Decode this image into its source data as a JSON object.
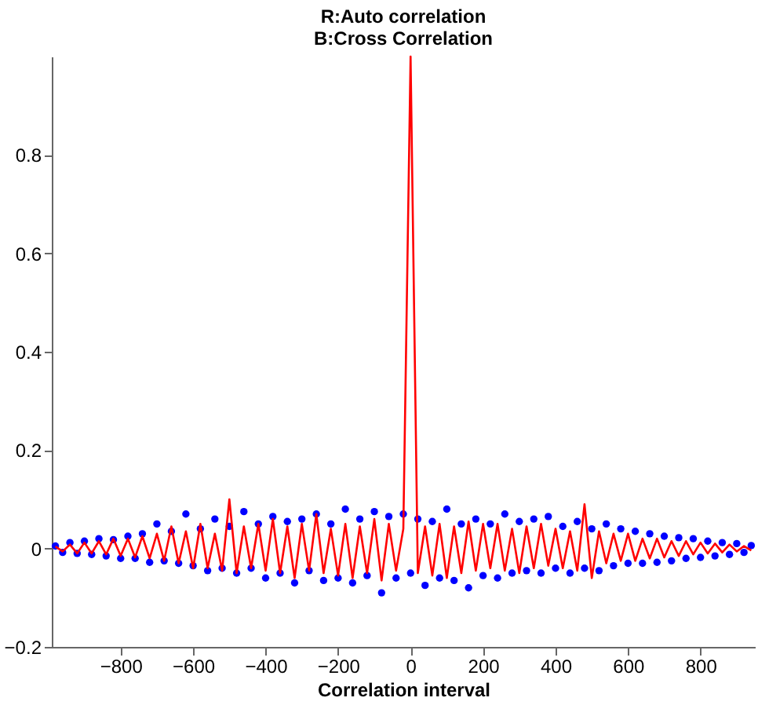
{
  "chart_data": {
    "type": "line",
    "title": [
      "R:Auto  correlation",
      "B:Cross Correlation"
    ],
    "xlabel": "Correlation interval",
    "xlim": [
      -990,
      950
    ],
    "xticks": [
      -800,
      -600,
      -400,
      -200,
      0,
      200,
      400,
      600,
      800
    ],
    "ylim": [
      -0.2,
      1.0
    ],
    "yticks": [
      -0.2,
      0,
      0.2,
      0.4,
      0.6,
      0.8
    ],
    "grid": false,
    "series": [
      {
        "type": "scatter",
        "marker": "circle",
        "color": "#0000ff",
        "x": [
          -980,
          -960,
          -940,
          -920,
          -900,
          -880,
          -860,
          -840,
          -820,
          -800,
          -780,
          -760,
          -740,
          -720,
          -700,
          -680,
          -660,
          -640,
          -620,
          -600,
          -580,
          -560,
          -540,
          -520,
          -500,
          -480,
          -460,
          -440,
          -420,
          -400,
          -380,
          -360,
          -340,
          -320,
          -300,
          -280,
          -260,
          -240,
          -220,
          -200,
          -180,
          -160,
          -140,
          -120,
          -100,
          -80,
          -60,
          -40,
          -20,
          0,
          20,
          40,
          60,
          80,
          100,
          120,
          140,
          160,
          180,
          200,
          220,
          240,
          260,
          280,
          300,
          320,
          340,
          360,
          380,
          400,
          420,
          440,
          460,
          480,
          500,
          520,
          540,
          560,
          580,
          600,
          620,
          640,
          660,
          680,
          700,
          720,
          740,
          760,
          780,
          800,
          820,
          840,
          860,
          880,
          900,
          920,
          940
        ],
        "values": [
          0.005,
          -0.008,
          0.012,
          -0.01,
          0.015,
          -0.012,
          0.02,
          -0.015,
          0.018,
          -0.02,
          0.025,
          -0.02,
          0.03,
          -0.028,
          0.05,
          -0.025,
          0.035,
          -0.03,
          0.07,
          -0.035,
          0.04,
          -0.045,
          0.06,
          -0.04,
          0.045,
          -0.05,
          0.075,
          -0.04,
          0.05,
          -0.06,
          0.065,
          -0.05,
          0.055,
          -0.07,
          0.06,
          -0.045,
          0.07,
          -0.065,
          0.05,
          -0.06,
          0.08,
          -0.07,
          0.06,
          -0.055,
          0.075,
          -0.09,
          0.065,
          -0.06,
          0.07,
          -0.05,
          0.06,
          -0.075,
          0.055,
          -0.06,
          0.08,
          -0.065,
          0.05,
          -0.08,
          0.06,
          -0.055,
          0.05,
          -0.06,
          0.07,
          -0.05,
          0.055,
          -0.045,
          0.06,
          -0.05,
          0.065,
          -0.04,
          0.045,
          -0.05,
          0.055,
          -0.04,
          0.04,
          -0.045,
          0.05,
          -0.035,
          0.04,
          -0.03,
          0.035,
          -0.03,
          0.03,
          -0.028,
          0.025,
          -0.025,
          0.022,
          -0.02,
          0.02,
          -0.018,
          0.015,
          -0.015,
          0.012,
          -0.012,
          0.01,
          -0.008,
          0.006
        ]
      },
      {
        "line_style": "solid",
        "color": "#ff0000",
        "x": [
          -980,
          -960,
          -940,
          -920,
          -900,
          -880,
          -860,
          -840,
          -820,
          -800,
          -780,
          -760,
          -740,
          -720,
          -700,
          -680,
          -660,
          -640,
          -620,
          -600,
          -580,
          -560,
          -540,
          -520,
          -500,
          -480,
          -460,
          -440,
          -420,
          -400,
          -380,
          -360,
          -340,
          -320,
          -300,
          -280,
          -260,
          -240,
          -220,
          -200,
          -180,
          -160,
          -140,
          -120,
          -100,
          -80,
          -60,
          -40,
          -20,
          0,
          20,
          40,
          60,
          80,
          100,
          120,
          140,
          160,
          180,
          200,
          220,
          240,
          260,
          280,
          300,
          320,
          340,
          360,
          380,
          400,
          420,
          440,
          460,
          480,
          500,
          520,
          540,
          560,
          580,
          600,
          620,
          640,
          660,
          680,
          700,
          720,
          740,
          760,
          780,
          800,
          820,
          840,
          860,
          880,
          900,
          920,
          940
        ],
        "values": [
          0.004,
          -0.006,
          0.008,
          -0.01,
          0.012,
          -0.01,
          0.015,
          -0.012,
          0.02,
          -0.015,
          0.02,
          -0.018,
          0.025,
          -0.02,
          0.03,
          -0.025,
          0.045,
          -0.03,
          0.035,
          -0.04,
          0.05,
          -0.04,
          0.03,
          -0.045,
          0.1,
          -0.05,
          0.045,
          -0.04,
          0.05,
          -0.045,
          0.06,
          -0.05,
          0.045,
          -0.06,
          0.05,
          -0.045,
          0.07,
          -0.05,
          0.04,
          -0.055,
          0.05,
          -0.06,
          0.045,
          -0.05,
          0.06,
          -0.065,
          0.05,
          -0.045,
          0.04,
          1.0,
          -0.05,
          0.045,
          -0.055,
          0.05,
          -0.06,
          0.045,
          -0.05,
          0.055,
          -0.045,
          0.05,
          -0.04,
          0.05,
          -0.045,
          0.04,
          -0.05,
          0.045,
          -0.04,
          0.05,
          -0.035,
          0.04,
          -0.04,
          0.035,
          -0.045,
          0.09,
          -0.06,
          0.035,
          -0.03,
          0.03,
          -0.025,
          0.03,
          -0.025,
          0.02,
          -0.02,
          0.02,
          -0.018,
          0.015,
          -0.015,
          0.015,
          -0.012,
          0.012,
          -0.01,
          0.01,
          -0.008,
          0.008,
          -0.006,
          0.005,
          -0.004
        ]
      }
    ]
  }
}
